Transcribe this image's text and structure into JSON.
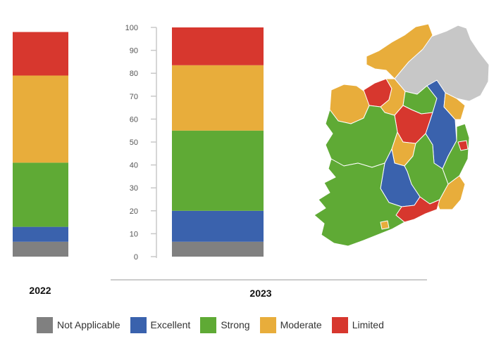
{
  "chart_data": {
    "type": "bar",
    "stacked": true,
    "categories": [
      "2022",
      "2023"
    ],
    "ylim": [
      0,
      100
    ],
    "yticks": [
      0,
      10,
      20,
      30,
      40,
      50,
      60,
      70,
      80,
      90,
      100
    ],
    "series": [
      {
        "name": "Not Applicable",
        "color": "#808080",
        "values": [
          6.5,
          6.5
        ]
      },
      {
        "name": "Excellent",
        "color": "#3a62ad",
        "values": [
          6.5,
          13.5
        ]
      },
      {
        "name": "Strong",
        "color": "#5faa35",
        "values": [
          28,
          35
        ]
      },
      {
        "name": "Moderate",
        "color": "#e8ad3b",
        "values": [
          38,
          28.5
        ]
      },
      {
        "name": "Limited",
        "color": "#d7372e",
        "values": [
          19,
          16.5
        ]
      }
    ],
    "legend_position": "bottom",
    "grid": false
  },
  "map": {
    "icon": "ireland-map-icon",
    "colors": {
      "not_applicable": "#c7c7c7",
      "excellent": "#3a62ad",
      "strong": "#5faa35",
      "moderate": "#e8ad3b",
      "limited": "#d7372e"
    }
  }
}
